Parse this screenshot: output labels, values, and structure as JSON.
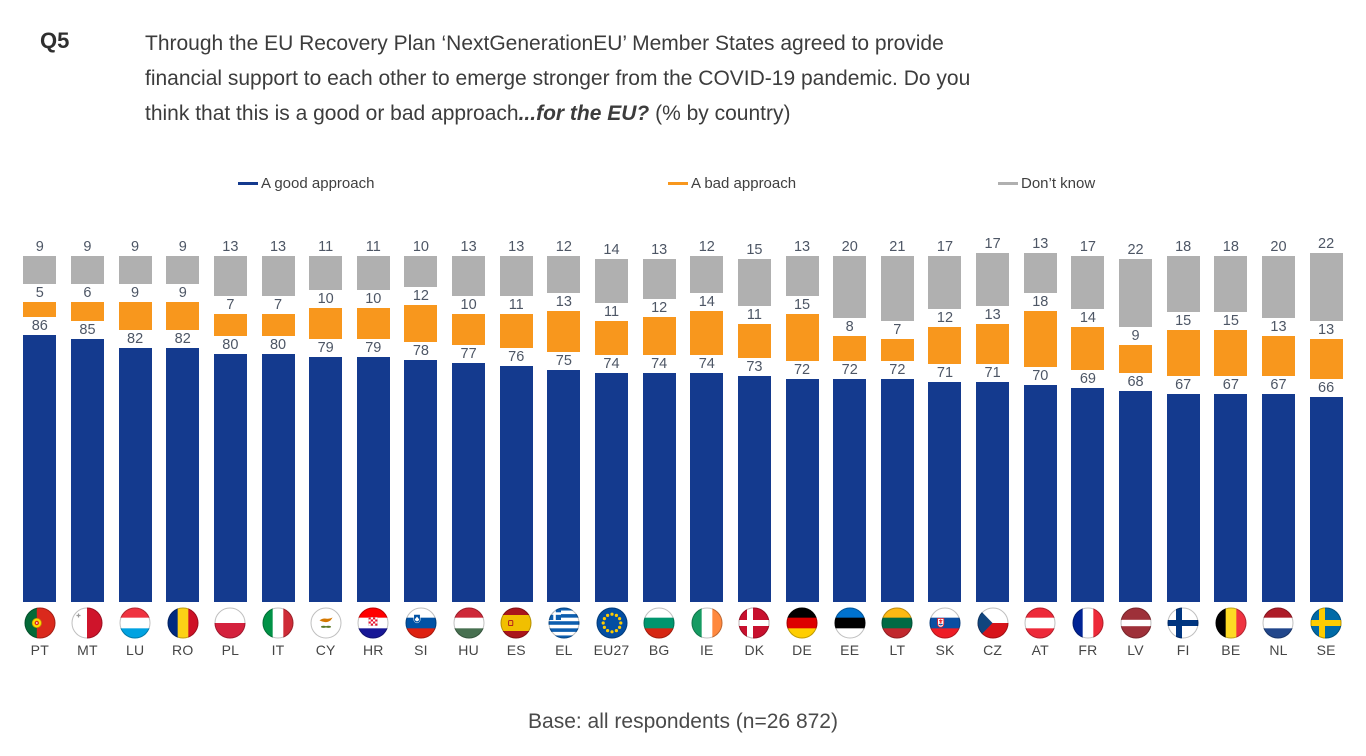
{
  "question": {
    "number": "Q5",
    "line1": "Through the EU Recovery Plan ‘NextGenerationEU’ Member States agreed to provide",
    "line2": "financial support to each other to emerge stronger from the COVID-19 pandemic. Do you",
    "line3": "think that this is a good or bad approach",
    "emphasis": "...for the EU?",
    "suffix": " (% by country)"
  },
  "legend": [
    {
      "label": "A good approach",
      "color": "#143A8E"
    },
    {
      "label": "A bad approach",
      "color": "#F8971D"
    },
    {
      "label": "Don’t know",
      "color": "#B0B0B0"
    }
  ],
  "footer": {
    "base_note": "Base: all respondents (n=26 872)"
  },
  "chart_data": {
    "type": "bar",
    "subtype": "stacked-percentage-column",
    "unit": "% by country",
    "stack_total": 100,
    "legend_position": "top",
    "grid": false,
    "axes": "none (all segments directly labeled)",
    "categories": [
      "PT",
      "MT",
      "LU",
      "RO",
      "PL",
      "IT",
      "CY",
      "HR",
      "SI",
      "HU",
      "ES",
      "EL",
      "EU27",
      "BG",
      "IE",
      "DK",
      "DE",
      "EE",
      "LT",
      "SK",
      "CZ",
      "AT",
      "FR",
      "LV",
      "FI",
      "BE",
      "NL",
      "SE"
    ],
    "series": [
      {
        "name": "A good approach",
        "key": "good",
        "color": "#143A8E",
        "values": [
          86,
          85,
          82,
          82,
          80,
          80,
          79,
          79,
          78,
          77,
          76,
          75,
          74,
          74,
          74,
          73,
          72,
          72,
          72,
          71,
          71,
          70,
          69,
          68,
          67,
          67,
          67,
          66
        ]
      },
      {
        "name": "A bad approach",
        "key": "bad",
        "color": "#F8971D",
        "values": [
          5,
          6,
          9,
          9,
          7,
          7,
          10,
          10,
          12,
          10,
          11,
          13,
          11,
          12,
          14,
          11,
          15,
          8,
          7,
          12,
          13,
          18,
          14,
          9,
          15,
          15,
          13,
          13
        ]
      },
      {
        "name": "Don’t know",
        "key": "dontknow",
        "color": "#B0B0B0",
        "values": [
          9,
          9,
          9,
          9,
          13,
          13,
          11,
          11,
          10,
          13,
          13,
          12,
          14,
          13,
          12,
          15,
          13,
          20,
          21,
          17,
          17,
          13,
          17,
          22,
          18,
          18,
          20,
          22
        ]
      }
    ],
    "flags": {
      "PT": {
        "t": "v",
        "s": [
          [
            "#046A38",
            2
          ],
          [
            "#DA291C",
            3
          ]
        ],
        "x": "PT"
      },
      "MT": {
        "t": "v",
        "s": [
          [
            "#FFFFFF",
            1
          ],
          [
            "#CF142B",
            1
          ]
        ],
        "x": "MT"
      },
      "LU": {
        "t": "h",
        "s": [
          [
            "#EF3340",
            1
          ],
          [
            "#FFFFFF",
            1
          ],
          [
            "#00A2E1",
            1
          ]
        ]
      },
      "RO": {
        "t": "v",
        "s": [
          [
            "#002B7F",
            1
          ],
          [
            "#FCD116",
            1
          ],
          [
            "#CE1126",
            1
          ]
        ]
      },
      "PL": {
        "t": "h",
        "s": [
          [
            "#FFFFFF",
            1
          ],
          [
            "#D4213D",
            1
          ]
        ]
      },
      "IT": {
        "t": "v",
        "s": [
          [
            "#009246",
            1
          ],
          [
            "#FFFFFF",
            1
          ],
          [
            "#CE2B37",
            1
          ]
        ]
      },
      "CY": {
        "t": "p",
        "bg": "#FFFFFF",
        "x": "CY"
      },
      "HR": {
        "t": "h",
        "s": [
          [
            "#FF0000",
            1
          ],
          [
            "#FFFFFF",
            1
          ],
          [
            "#171796",
            1
          ]
        ],
        "x": "HR"
      },
      "SI": {
        "t": "h",
        "s": [
          [
            "#FFFFFF",
            1
          ],
          [
            "#0052A5",
            1
          ],
          [
            "#DE2010",
            1
          ]
        ],
        "x": "SI"
      },
      "HU": {
        "t": "h",
        "s": [
          [
            "#CE2939",
            1
          ],
          [
            "#FFFFFF",
            1
          ],
          [
            "#477050",
            1
          ]
        ]
      },
      "ES": {
        "t": "h",
        "s": [
          [
            "#AA151B",
            1
          ],
          [
            "#F1BF00",
            2
          ],
          [
            "#AA151B",
            1
          ]
        ],
        "x": "ES"
      },
      "EL": {
        "t": "el"
      },
      "EU27": {
        "t": "p",
        "bg": "#034EA2",
        "x": "EU"
      },
      "BG": {
        "t": "h",
        "s": [
          [
            "#FFFFFF",
            1
          ],
          [
            "#00966E",
            1
          ],
          [
            "#D62612",
            1
          ]
        ]
      },
      "IE": {
        "t": "v",
        "s": [
          [
            "#169B62",
            1
          ],
          [
            "#FFFFFF",
            1
          ],
          [
            "#FF883E",
            1
          ]
        ]
      },
      "DK": {
        "t": "n",
        "bg": "#C8102E",
        "cross": "#FFFFFF"
      },
      "DE": {
        "t": "h",
        "s": [
          [
            "#000000",
            1
          ],
          [
            "#DD0000",
            1
          ],
          [
            "#FFCE00",
            1
          ]
        ]
      },
      "EE": {
        "t": "h",
        "s": [
          [
            "#0072CE",
            1
          ],
          [
            "#000000",
            1
          ],
          [
            "#FFFFFF",
            1
          ]
        ]
      },
      "LT": {
        "t": "h",
        "s": [
          [
            "#FDB913",
            1
          ],
          [
            "#006A44",
            1
          ],
          [
            "#C1272D",
            1
          ]
        ]
      },
      "SK": {
        "t": "h",
        "s": [
          [
            "#FFFFFF",
            1
          ],
          [
            "#0B4EA2",
            1
          ],
          [
            "#EE1C25",
            1
          ]
        ],
        "x": "SK"
      },
      "CZ": {
        "t": "h",
        "s": [
          [
            "#FFFFFF",
            1
          ],
          [
            "#D7141A",
            1
          ]
        ],
        "x": "CZ"
      },
      "AT": {
        "t": "h",
        "s": [
          [
            "#ED2939",
            1
          ],
          [
            "#FFFFFF",
            1
          ],
          [
            "#ED2939",
            1
          ]
        ]
      },
      "FR": {
        "t": "v",
        "s": [
          [
            "#002395",
            1
          ],
          [
            "#FFFFFF",
            1
          ],
          [
            "#ED2939",
            1
          ]
        ]
      },
      "LV": {
        "t": "h",
        "s": [
          [
            "#9E3039",
            2
          ],
          [
            "#FFFFFF",
            1
          ],
          [
            "#9E3039",
            2
          ]
        ]
      },
      "FI": {
        "t": "n",
        "bg": "#FFFFFF",
        "cross": "#003580"
      },
      "BE": {
        "t": "v",
        "s": [
          [
            "#000000",
            1
          ],
          [
            "#FDDA24",
            1
          ],
          [
            "#EF3340",
            1
          ]
        ]
      },
      "NL": {
        "t": "h",
        "s": [
          [
            "#AE1C28",
            1
          ],
          [
            "#FFFFFF",
            1
          ],
          [
            "#21468B",
            1
          ]
        ]
      },
      "SE": {
        "t": "n",
        "bg": "#006AA7",
        "cross": "#FECC00"
      }
    }
  }
}
